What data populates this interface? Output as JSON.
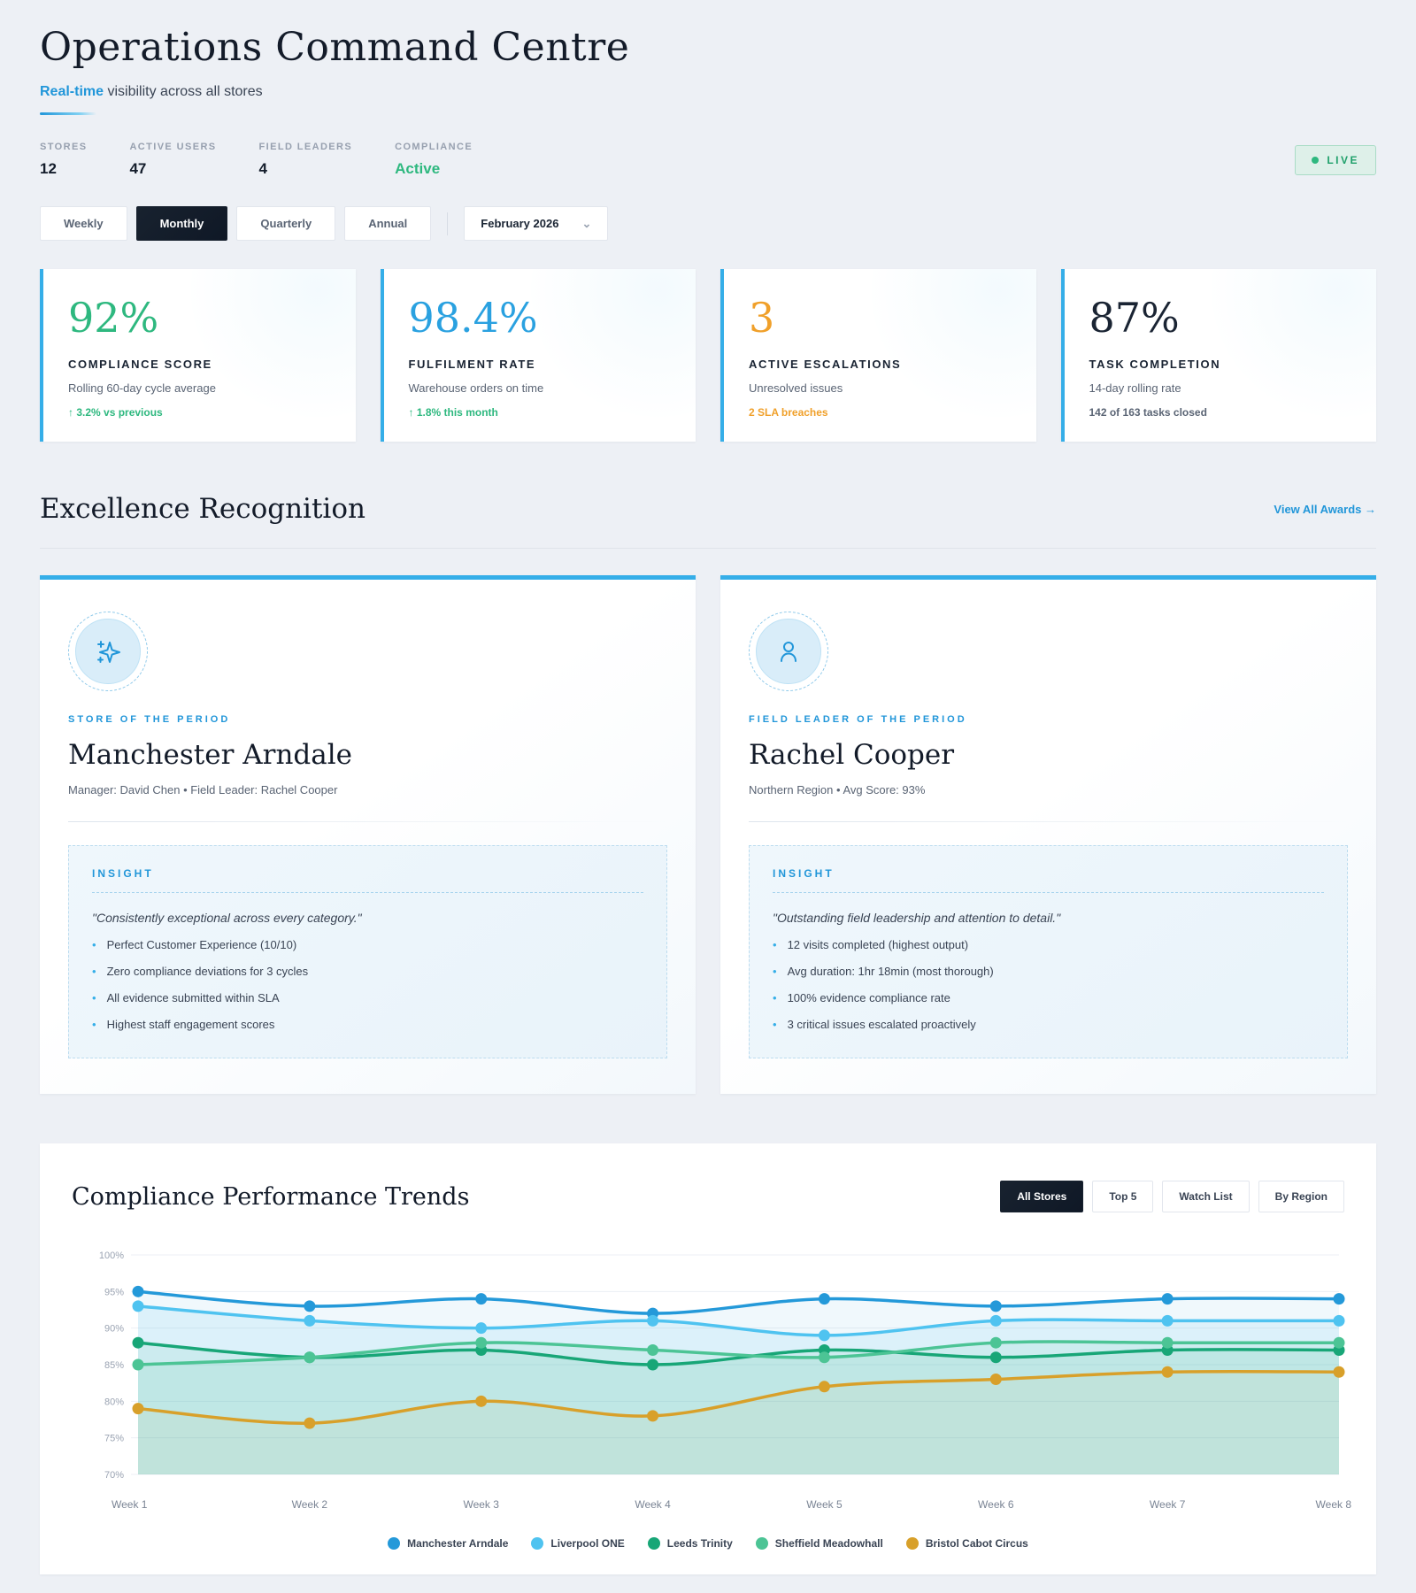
{
  "colors": {
    "accent_blue": "#2196d9",
    "green": "#2eb87f",
    "orange": "#f0a02a",
    "dark": "#1a2433",
    "gray": "#5a6474",
    "kpi_border": "#35aee8"
  },
  "icons": {
    "chevron_down": "⌄",
    "bullet": "•",
    "award_icon": "sparkle",
    "leader_icon": "person"
  },
  "header": {
    "title": "Operations Command Centre",
    "subtitle_highlight": "Real-time",
    "subtitle_rest": " visibility across all stores",
    "live_label": "LIVE",
    "stats": [
      {
        "label": "STORES",
        "value": "12",
        "color": "#141d2b"
      },
      {
        "label": "ACTIVE USERS",
        "value": "47",
        "color": "#141d2b"
      },
      {
        "label": "FIELD LEADERS",
        "value": "4",
        "color": "#141d2b"
      },
      {
        "label": "COMPLIANCE",
        "value": "Active",
        "color": "#2eb87f"
      }
    ]
  },
  "period_tabs": {
    "items": [
      "Weekly",
      "Monthly",
      "Quarterly",
      "Annual"
    ],
    "active": "Monthly",
    "selector": "February 2026"
  },
  "kpis": [
    {
      "value": "92%",
      "value_color": "#2eb87f",
      "label": "COMPLIANCE SCORE",
      "sub": "Rolling 60-day cycle average",
      "footer": "↑ 3.2% vs previous",
      "footer_color": "#2eb87f"
    },
    {
      "value": "98.4%",
      "value_color": "#2aa1e0",
      "label": "FULFILMENT RATE",
      "sub": "Warehouse orders on time",
      "footer": "↑ 1.8% this month",
      "footer_color": "#2eb87f"
    },
    {
      "value": "3",
      "value_color": "#f0a02a",
      "label": "ACTIVE ESCALATIONS",
      "sub": "Unresolved issues",
      "footer": "2 SLA breaches",
      "footer_color": "#f0a02a"
    },
    {
      "value": "87%",
      "value_color": "#1a2433",
      "label": "TASK COMPLETION",
      "sub": "14-day rolling rate",
      "footer": "142 of 163 tasks closed",
      "footer_color": "#5a6474"
    }
  ],
  "recognition": {
    "section_title": "Excellence Recognition",
    "view_all": "View All Awards →",
    "cards": [
      {
        "badge": "STORE OF THE PERIOD",
        "name": "Manchester Arndale",
        "meta": "Manager: David Chen • Field Leader: Rachel Cooper",
        "insight_label": "INSIGHT",
        "quote": "\"Consistently exceptional across every category.\"",
        "bullets": [
          "Perfect Customer Experience (10/10)",
          "Zero compliance deviations for 3 cycles",
          "All evidence submitted within SLA",
          "Highest staff engagement scores"
        ]
      },
      {
        "badge": "FIELD LEADER OF THE PERIOD",
        "name": "Rachel Cooper",
        "meta": "Northern Region • Avg Score: 93%",
        "insight_label": "INSIGHT",
        "quote": "\"Outstanding field leadership and attention to detail.\"",
        "bullets": [
          "12 visits completed (highest output)",
          "Avg duration: 1hr 18min (most thorough)",
          "100% evidence compliance rate",
          "3 critical issues escalated proactively"
        ]
      }
    ]
  },
  "trends": {
    "tabs": [
      "All Stores",
      "Top 5",
      "Watch List",
      "By Region"
    ],
    "active_tab": "All Stores"
  },
  "chart_data": {
    "type": "line",
    "title": "Compliance Performance Trends",
    "x": [
      "Week 1",
      "Week 2",
      "Week 3",
      "Week 4",
      "Week 5",
      "Week 6",
      "Week 7",
      "Week 8"
    ],
    "ylim": [
      70,
      100
    ],
    "yticks": [
      100,
      95,
      90,
      85,
      80,
      75,
      70
    ],
    "ytick_suffix": "%",
    "grid": true,
    "legend_position": "bottom",
    "series": [
      {
        "name": "Manchester Arndale",
        "color": "#2499d9",
        "values": [
          95,
          93,
          94,
          92,
          94,
          93,
          94,
          94
        ]
      },
      {
        "name": "Liverpool ONE",
        "color": "#4fc3f0",
        "values": [
          93,
          91,
          90,
          91,
          89,
          91,
          91,
          91
        ]
      },
      {
        "name": "Leeds Trinity",
        "color": "#18a677",
        "values": [
          88,
          86,
          87,
          85,
          87,
          86,
          87,
          87
        ]
      },
      {
        "name": "Sheffield Meadowhall",
        "color": "#4cc495",
        "values": [
          85,
          86,
          88,
          87,
          86,
          88,
          88,
          88
        ]
      },
      {
        "name": "Bristol Cabot Circus",
        "color": "#d8a02a",
        "values": [
          79,
          77,
          80,
          78,
          82,
          83,
          84,
          84
        ]
      }
    ]
  }
}
